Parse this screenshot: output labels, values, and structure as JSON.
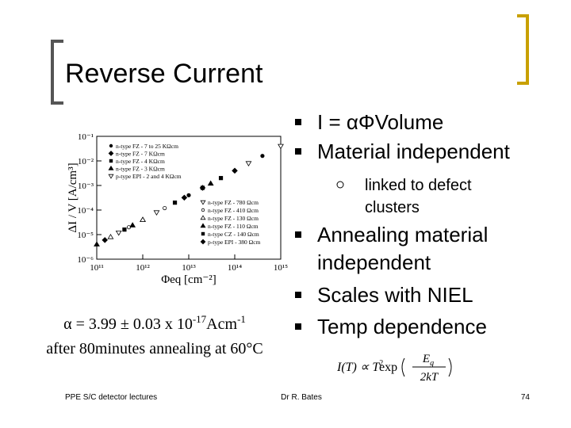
{
  "slide": {
    "title": "Reverse Current",
    "bullets": [
      {
        "lines": [
          "I = αΦVolume"
        ]
      },
      {
        "lines": [
          "Material independent"
        ]
      },
      {
        "lines": [
          "linked to defect",
          "clusters"
        ],
        "sub": true
      },
      {
        "lines": [
          "Annealing material",
          "independent"
        ]
      },
      {
        "lines": [
          "Scales with NIEL"
        ]
      },
      {
        "lines": [
          "Temp dependence"
        ]
      }
    ],
    "caption": {
      "line1": [
        "α = 3.99 ± 0.03 x 10",
        "-17",
        "Acm",
        "-1"
      ],
      "line2": "after 80minutes annealing at 60°C"
    },
    "formula": {
      "lhs": "I(T) ∝ T",
      "power": "2",
      "fn": "exp",
      "num": "E",
      "num_sub": "g",
      "den": "2kT"
    },
    "footer": {
      "left": "PPE S/C detector lectures",
      "center": "Dr R. Bates",
      "page": "74"
    }
  },
  "chart_data": {
    "type": "scatter",
    "x_label": "Φeq [cm⁻²]",
    "y_label": "ΔI / V  [A/cm³]",
    "log_x": true,
    "log_y": true,
    "xlim": [
      100000000000.0,
      1000000000000000.0
    ],
    "ylim": [
      1e-06,
      0.1
    ],
    "xticks": [
      {
        "value": 100000000000.0,
        "label": "10¹¹"
      },
      {
        "value": 1000000000000.0,
        "label": "10¹²"
      },
      {
        "value": 10000000000000.0,
        "label": "10¹³"
      },
      {
        "value": 100000000000000.0,
        "label": "10¹⁴"
      },
      {
        "value": 1000000000000000.0,
        "label": "10¹⁵"
      }
    ],
    "yticks": [
      {
        "value": 1e-06,
        "label": "10⁻⁶"
      },
      {
        "value": 1e-05,
        "label": "10⁻⁵"
      },
      {
        "value": 0.0001,
        "label": "10⁻⁴"
      },
      {
        "value": 0.001,
        "label": "10⁻³"
      },
      {
        "value": 0.01,
        "label": "10⁻²"
      },
      {
        "value": 0.1,
        "label": "10⁻¹"
      }
    ],
    "series": [
      {
        "name": "n-type FZ - 7 to 25 KΩcm",
        "color": "#000000",
        "marker": "circle",
        "filled": true,
        "x": [
          10000000000000.0,
          100000000000000.0,
          400000000000000.0
        ],
        "values": [
          0.0004,
          0.004,
          0.016
        ]
      },
      {
        "name": "n-type FZ - 7 KΩcm",
        "color": "#000000",
        "marker": "diamond",
        "filled": true,
        "x": [
          20000000000000.0,
          100000000000000.0
        ],
        "values": [
          0.0008,
          0.004
        ]
      },
      {
        "name": "n-type FZ - 4 KΩcm",
        "color": "#000000",
        "marker": "square",
        "filled": true,
        "x": [
          5000000000000.0,
          50000000000000.0
        ],
        "values": [
          0.0002,
          0.002
        ]
      },
      {
        "name": "n-type FZ - 3 KΩcm",
        "color": "#000000",
        "marker": "triangle",
        "filled": true,
        "x": [
          1000000000000.0,
          30000000000000.0
        ],
        "values": [
          4e-05,
          0.0012
        ]
      },
      {
        "name": "p-type EPI - 2 and 4 KΩcm",
        "color": "#000000",
        "marker": "triangle-down",
        "filled": false,
        "x": [
          200000000000000.0,
          1000000000000000.0
        ],
        "values": [
          0.008,
          0.04
        ]
      },
      {
        "name": "n-type FZ - 780 Ωcm",
        "color": "#000000",
        "marker": "triangle-down",
        "filled": false,
        "x": [
          300000000000.0,
          2000000000000.0
        ],
        "values": [
          1.2e-05,
          8e-05
        ]
      },
      {
        "name": "n-type FZ - 410 Ωcm",
        "color": "#000000",
        "marker": "circle",
        "filled": false,
        "x": [
          500000000000.0,
          3000000000000.0
        ],
        "values": [
          2e-05,
          0.00012
        ]
      },
      {
        "name": "n-type FZ - 130 Ωcm",
        "color": "#000000",
        "marker": "triangle",
        "filled": false,
        "x": [
          200000000000.0,
          1000000000000.0
        ],
        "values": [
          8e-06,
          4e-05
        ]
      },
      {
        "name": "n-type FZ - 110 Ωcm",
        "color": "#000000",
        "marker": "triangle",
        "filled": true,
        "x": [
          100000000000.0,
          600000000000.0
        ],
        "values": [
          4e-06,
          2.4e-05
        ]
      },
      {
        "name": "n-type CZ - 140 Ωcm",
        "color": "#000000",
        "marker": "square",
        "filled": true,
        "x": [
          400000000000.0,
          20000000000000.0
        ],
        "values": [
          1.6e-05,
          0.0008
        ]
      },
      {
        "name": "p-type EPI - 380 Ωcm",
        "color": "#000000",
        "marker": "diamond",
        "filled": true,
        "x": [
          150000000000.0,
          8000000000000.0
        ],
        "values": [
          6e-06,
          0.00032
        ]
      }
    ]
  }
}
